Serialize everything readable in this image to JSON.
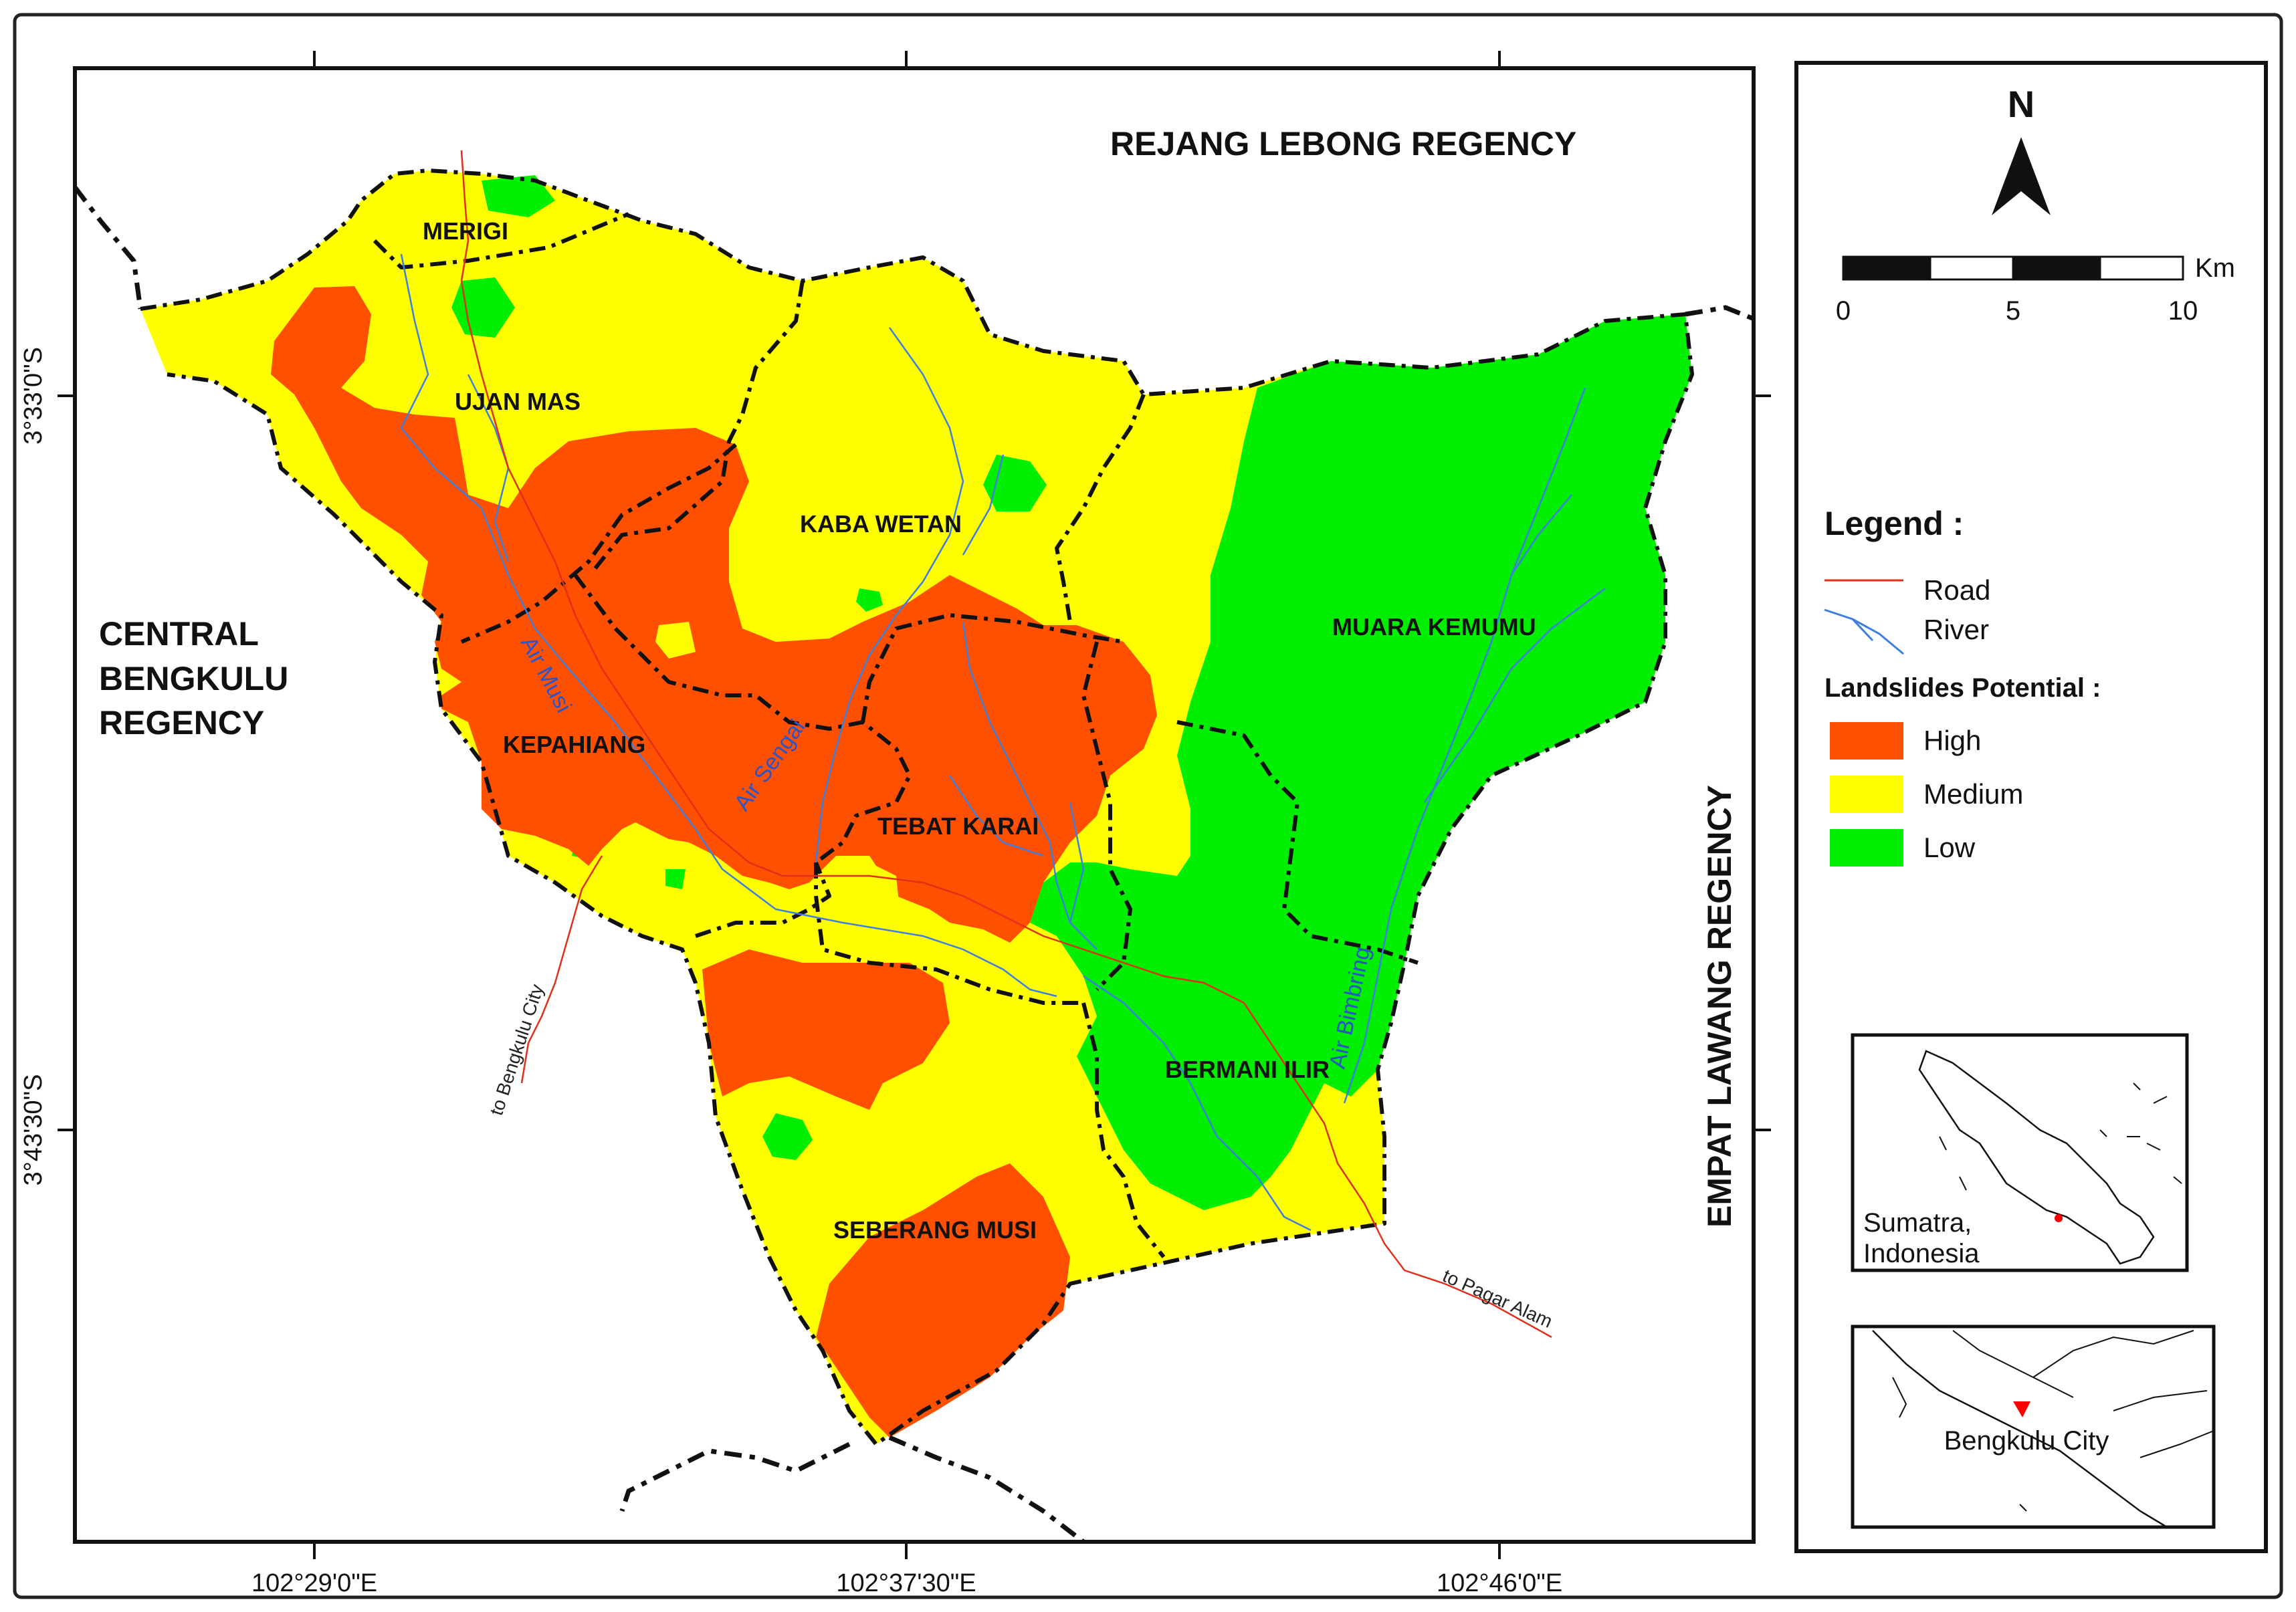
{
  "map": {
    "neighbors": {
      "north": "REJANG LEBONG REGENCY",
      "west_line1": "CENTRAL",
      "west_line2": "BENGKULU",
      "west_line3": "REGENCY",
      "east": "EMPAT LAWANG REGENCY"
    },
    "districts": [
      {
        "name": "MERIGI"
      },
      {
        "name": "UJAN MAS"
      },
      {
        "name": "KABA WETAN"
      },
      {
        "name": "MUARA KEMUMU"
      },
      {
        "name": "KEPAHIANG"
      },
      {
        "name": "TEBAT KARAI"
      },
      {
        "name": "BERMANI ILIR"
      },
      {
        "name": "SEBERANG MUSI"
      }
    ],
    "rivers": {
      "musi": "Air Musi",
      "sengai": "Air Sengai",
      "bimbring": "Air Bimbring"
    },
    "roads": {
      "west": "to Bengkulu City",
      "east": "to Pagar Alam"
    },
    "grid": {
      "lon_labels": [
        "102°29'0\"E",
        "102°37'30\"E",
        "102°46'0\"E"
      ],
      "lat_labels": [
        "3°33'0\"S",
        "3°43'30\"S"
      ]
    }
  },
  "legend": {
    "north": "N",
    "scale_unit": "Km",
    "scale_ticks": [
      "0",
      "5",
      "10"
    ],
    "title": "Legend :",
    "road": "Road",
    "river": "River",
    "potential_title": "Landslides Potential :",
    "classes": [
      {
        "label": "High",
        "color": "#ff5000"
      },
      {
        "label": "Medium",
        "color": "#ffff00"
      },
      {
        "label": "Low",
        "color": "#00ee00"
      }
    ],
    "inset1_line1": "Sumatra,",
    "inset1_line2": "Indonesia",
    "inset2": "Bengkulu City"
  }
}
